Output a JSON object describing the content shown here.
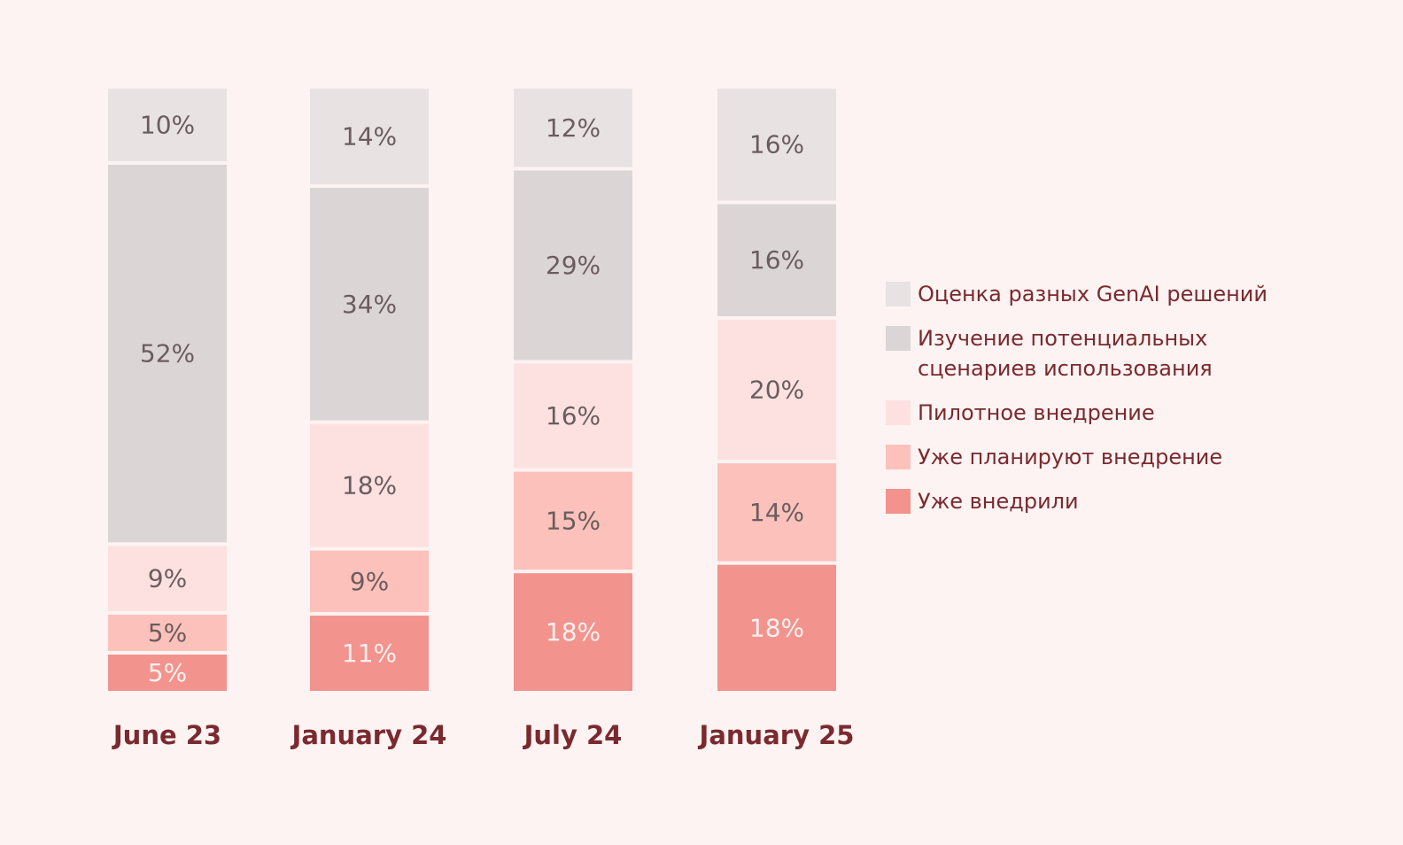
{
  "chart_data": {
    "type": "bar",
    "stacked": true,
    "categories": [
      "June 23",
      "January 24",
      "July 24",
      "January 25"
    ],
    "series": [
      {
        "name": "Уже внедрили",
        "color": "#f2938d",
        "values": [
          5,
          11,
          18,
          18
        ]
      },
      {
        "name": "Уже планируют внедрение",
        "color": "#fcc1bb",
        "values": [
          5,
          9,
          15,
          14
        ]
      },
      {
        "name": "Пилотное внедрение",
        "color": "#fde1e1",
        "values": [
          9,
          18,
          16,
          20
        ]
      },
      {
        "name": "Изучение потенциальных сценариев использования",
        "color": "#dcd5d6",
        "values": [
          52,
          34,
          29,
          16
        ]
      },
      {
        "name": "Оценка разных GenAI решений",
        "color": "#e8e2e3",
        "values": [
          10,
          14,
          12,
          16
        ]
      }
    ],
    "legend": [
      {
        "lines": [
          "Оценка разных GenAI решений"
        ],
        "color": "#e8e2e3"
      },
      {
        "lines": [
          "Изучение потенциальных",
          "сценариев использования"
        ],
        "color": "#dcd5d6"
      },
      {
        "lines": [
          "Пилотное внедрение"
        ],
        "color": "#fde1e1"
      },
      {
        "lines": [
          "Уже планируют внедрение"
        ],
        "color": "#fcc1bb"
      },
      {
        "lines": [
          "Уже внедрили"
        ],
        "color": "#f2938d"
      }
    ],
    "value_suffix": "%",
    "legend_position": "right"
  }
}
